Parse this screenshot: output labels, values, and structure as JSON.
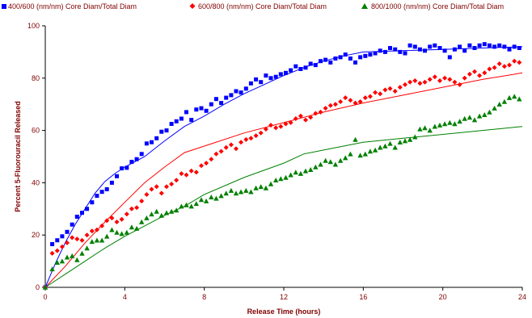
{
  "chart_data": {
    "type": "scatter",
    "title": "",
    "xlabel": "Release Time (hours)",
    "ylabel": "Percent 5-Fluorouracil Released",
    "xlim": [
      0,
      24
    ],
    "ylim": [
      0,
      100
    ],
    "xticks": [
      "0",
      "4",
      "8",
      "12",
      "16",
      "20",
      "24"
    ],
    "yticks": [
      "0",
      "20",
      "40",
      "60",
      "80",
      "100"
    ],
    "grid": false,
    "legend_position": "top",
    "series": [
      {
        "name": "400/600 (nm/nm) Core Diam/Total Diam",
        "color": "#0000ff",
        "marker": "square",
        "x": [
          0.35,
          0.6,
          0.85,
          1.1,
          1.35,
          1.6,
          1.85,
          2.1,
          2.35,
          2.6,
          2.85,
          3.1,
          3.35,
          3.6,
          3.85,
          4.1,
          4.35,
          4.6,
          4.85,
          5.1,
          5.35,
          5.6,
          5.85,
          6.1,
          6.35,
          6.6,
          6.85,
          7.1,
          7.35,
          7.6,
          7.85,
          8.1,
          8.35,
          8.6,
          8.85,
          9.1,
          9.35,
          9.6,
          9.85,
          10.1,
          10.35,
          10.6,
          10.85,
          11.1,
          11.35,
          11.6,
          11.85,
          12.1,
          12.35,
          12.6,
          12.85,
          13.1,
          13.35,
          13.6,
          13.85,
          14.1,
          14.35,
          14.6,
          14.85,
          15.1,
          15.35,
          15.6,
          15.85,
          16.1,
          16.35,
          16.6,
          16.85,
          17.1,
          17.35,
          17.6,
          17.85,
          18.1,
          18.35,
          18.6,
          18.85,
          19.1,
          19.35,
          19.6,
          19.85,
          20.1,
          20.35,
          20.6,
          20.85,
          21.1,
          21.35,
          21.6,
          21.85,
          22.1,
          22.35,
          22.6,
          22.85,
          23.1,
          23.35,
          23.6,
          23.85
        ],
        "y": [
          16.5,
          18.0,
          19.5,
          21.2,
          24.0,
          27.0,
          28.5,
          30.0,
          32.5,
          35.0,
          36.5,
          37.5,
          40.0,
          42.5,
          45.5,
          45.7,
          48.0,
          49.0,
          51.0,
          55.0,
          55.5,
          57.0,
          59.5,
          60.0,
          62.5,
          63.5,
          64.5,
          67.0,
          64.0,
          68.0,
          68.5,
          67.5,
          70.0,
          72.0,
          70.5,
          72.5,
          73.5,
          75.0,
          74.5,
          76.0,
          78.0,
          79.5,
          78.5,
          81.0,
          80.0,
          80.5,
          81.5,
          82.0,
          83.0,
          84.5,
          83.5,
          84.0,
          85.5,
          85.0,
          86.5,
          87.0,
          86.0,
          87.5,
          88.0,
          89.0,
          87.5,
          86.0,
          88.0,
          88.5,
          89.0,
          89.5,
          90.5,
          90.0,
          91.5,
          91.0,
          90.0,
          89.5,
          92.5,
          92.0,
          91.0,
          90.5,
          92.0,
          92.5,
          91.5,
          90.5,
          88.0,
          91.0,
          92.0,
          90.5,
          92.5,
          91.5,
          92.5,
          93.0,
          92.5,
          92.0,
          92.5,
          92.0,
          91.0,
          92.0,
          91.5
        ]
      },
      {
        "name": "600/800 (nm/nm) Core Diam/Total Diam",
        "color": "#ff0000",
        "marker": "diamond",
        "x": [
          0.35,
          0.6,
          0.85,
          1.1,
          1.35,
          1.6,
          1.85,
          2.1,
          2.35,
          2.6,
          2.85,
          3.1,
          3.35,
          3.6,
          3.85,
          4.1,
          4.35,
          4.6,
          4.85,
          5.1,
          5.35,
          5.6,
          5.85,
          6.1,
          6.35,
          6.6,
          6.85,
          7.1,
          7.35,
          7.6,
          7.85,
          8.1,
          8.35,
          8.6,
          8.85,
          9.1,
          9.35,
          9.6,
          9.85,
          10.1,
          10.35,
          10.6,
          10.85,
          11.1,
          11.35,
          11.6,
          11.85,
          12.1,
          12.35,
          12.6,
          12.85,
          13.1,
          13.35,
          13.6,
          13.85,
          14.1,
          14.35,
          14.6,
          14.85,
          15.1,
          15.35,
          15.6,
          15.85,
          16.1,
          16.35,
          16.6,
          16.85,
          17.1,
          17.35,
          17.6,
          17.85,
          18.1,
          18.35,
          18.6,
          18.85,
          19.1,
          19.35,
          19.6,
          19.85,
          20.1,
          20.35,
          20.6,
          20.85,
          21.1,
          21.35,
          21.6,
          21.85,
          22.1,
          22.35,
          22.6,
          22.85,
          23.1,
          23.35,
          23.6,
          23.85
        ],
        "y": [
          13.0,
          14.0,
          15.5,
          17.0,
          19.0,
          18.5,
          18.0,
          20.0,
          21.5,
          22.0,
          23.5,
          25.5,
          26.5,
          25.0,
          26.0,
          28.0,
          30.0,
          30.5,
          33.0,
          35.5,
          37.5,
          38.5,
          36.0,
          38.5,
          39.5,
          41.0,
          43.5,
          43.0,
          44.5,
          44.0,
          46.5,
          47.5,
          49.0,
          51.0,
          52.0,
          53.5,
          54.5,
          53.0,
          55.5,
          56.5,
          57.0,
          58.0,
          59.0,
          60.5,
          62.0,
          61.0,
          61.5,
          62.5,
          63.0,
          64.5,
          65.5,
          64.0,
          65.0,
          66.5,
          67.0,
          68.5,
          69.5,
          70.0,
          71.0,
          72.5,
          71.5,
          70.5,
          71.0,
          72.5,
          73.0,
          74.5,
          74.0,
          75.5,
          76.0,
          75.0,
          76.5,
          77.5,
          78.5,
          79.0,
          78.0,
          78.5,
          79.5,
          80.5,
          79.0,
          80.0,
          79.5,
          78.5,
          77.5,
          80.0,
          81.5,
          82.5,
          81.0,
          82.0,
          83.5,
          84.0,
          85.5,
          84.5,
          85.0,
          86.5,
          86.0
        ]
      },
      {
        "name": "800/1000 (nm/nm) Core Diam/Total Diam",
        "color": "#008000",
        "marker": "triangle",
        "x": [
          0.35,
          0.6,
          0.85,
          1.1,
          1.35,
          1.6,
          1.85,
          2.1,
          2.35,
          2.6,
          2.85,
          3.1,
          3.35,
          3.6,
          3.85,
          4.1,
          4.35,
          4.6,
          4.85,
          5.1,
          5.35,
          5.6,
          5.85,
          6.1,
          6.35,
          6.6,
          6.85,
          7.1,
          7.35,
          7.6,
          7.85,
          8.1,
          8.35,
          8.6,
          8.85,
          9.1,
          9.35,
          9.6,
          9.85,
          10.1,
          10.35,
          10.6,
          10.85,
          11.1,
          11.35,
          11.6,
          11.85,
          12.1,
          12.35,
          12.6,
          12.85,
          13.1,
          13.35,
          13.6,
          13.85,
          14.1,
          14.35,
          14.6,
          14.85,
          15.1,
          15.35,
          15.6,
          15.85,
          16.1,
          16.35,
          16.6,
          16.85,
          17.1,
          17.35,
          17.6,
          17.85,
          18.1,
          18.35,
          18.6,
          18.85,
          19.1,
          19.35,
          19.6,
          19.85,
          20.1,
          20.35,
          20.6,
          20.85,
          21.1,
          21.35,
          21.6,
          21.85,
          22.1,
          22.35,
          22.6,
          22.85,
          23.1,
          23.35,
          23.6,
          23.85
        ],
        "y": [
          7.0,
          9.5,
          10.0,
          11.5,
          12.0,
          10.5,
          13.0,
          15.0,
          17.5,
          18.0,
          18.0,
          19.5,
          22.0,
          21.0,
          20.5,
          21.0,
          23.0,
          22.5,
          25.0,
          26.5,
          28.0,
          29.0,
          27.5,
          28.5,
          29.0,
          29.5,
          31.0,
          31.5,
          31.0,
          32.0,
          33.5,
          33.0,
          34.5,
          34.0,
          35.0,
          36.0,
          37.0,
          36.0,
          36.5,
          37.0,
          36.5,
          38.0,
          38.5,
          38.0,
          39.5,
          41.0,
          41.5,
          42.0,
          43.0,
          44.0,
          43.5,
          44.5,
          45.0,
          46.0,
          47.0,
          48.5,
          48.0,
          47.0,
          48.5,
          49.5,
          51.0,
          56.5,
          50.5,
          51.0,
          52.0,
          52.5,
          53.5,
          54.0,
          55.0,
          53.5,
          55.5,
          56.0,
          56.5,
          57.5,
          60.5,
          61.0,
          60.0,
          61.5,
          62.0,
          62.5,
          63.0,
          62.5,
          63.5,
          64.5,
          65.0,
          64.0,
          65.5,
          66.0,
          67.0,
          68.5,
          70.0,
          71.0,
          72.5,
          73.0,
          72.0
        ]
      }
    ],
    "fits": [
      {
        "color": "#0000ff",
        "x": [
          0,
          0.5,
          1,
          1.5,
          2,
          2.5,
          3,
          3.5,
          4,
          5,
          6,
          7,
          8,
          9,
          10,
          11,
          12,
          13,
          14,
          15,
          16,
          18,
          20,
          22,
          24
        ],
        "y": [
          0,
          9,
          17,
          24,
          30,
          36,
          40.5,
          43.5,
          46,
          50,
          56,
          61.5,
          65.5,
          70,
          74,
          77.5,
          81,
          84,
          86.5,
          88.5,
          90,
          90.5,
          91,
          91.5,
          92
        ]
      },
      {
        "color": "#ff0000",
        "x": [
          0,
          1,
          2,
          3,
          4,
          5,
          6,
          7,
          8,
          10,
          12,
          14,
          16,
          18,
          20,
          22,
          24
        ],
        "y": [
          0,
          8,
          17,
          25,
          32.5,
          40,
          46,
          51.5,
          54,
          59,
          63,
          67,
          70.5,
          73.5,
          76.5,
          79.5,
          82
        ]
      },
      {
        "color": "#008000",
        "x": [
          0,
          1,
          2,
          3,
          4,
          5,
          6,
          7,
          8,
          10,
          12,
          13,
          14,
          16,
          18,
          20,
          22,
          24
        ],
        "y": [
          0,
          5,
          10,
          15,
          19.5,
          23.5,
          27.5,
          31,
          35.5,
          42,
          47.5,
          51,
          52.5,
          55.5,
          57,
          58.5,
          60,
          61.5
        ]
      }
    ]
  }
}
